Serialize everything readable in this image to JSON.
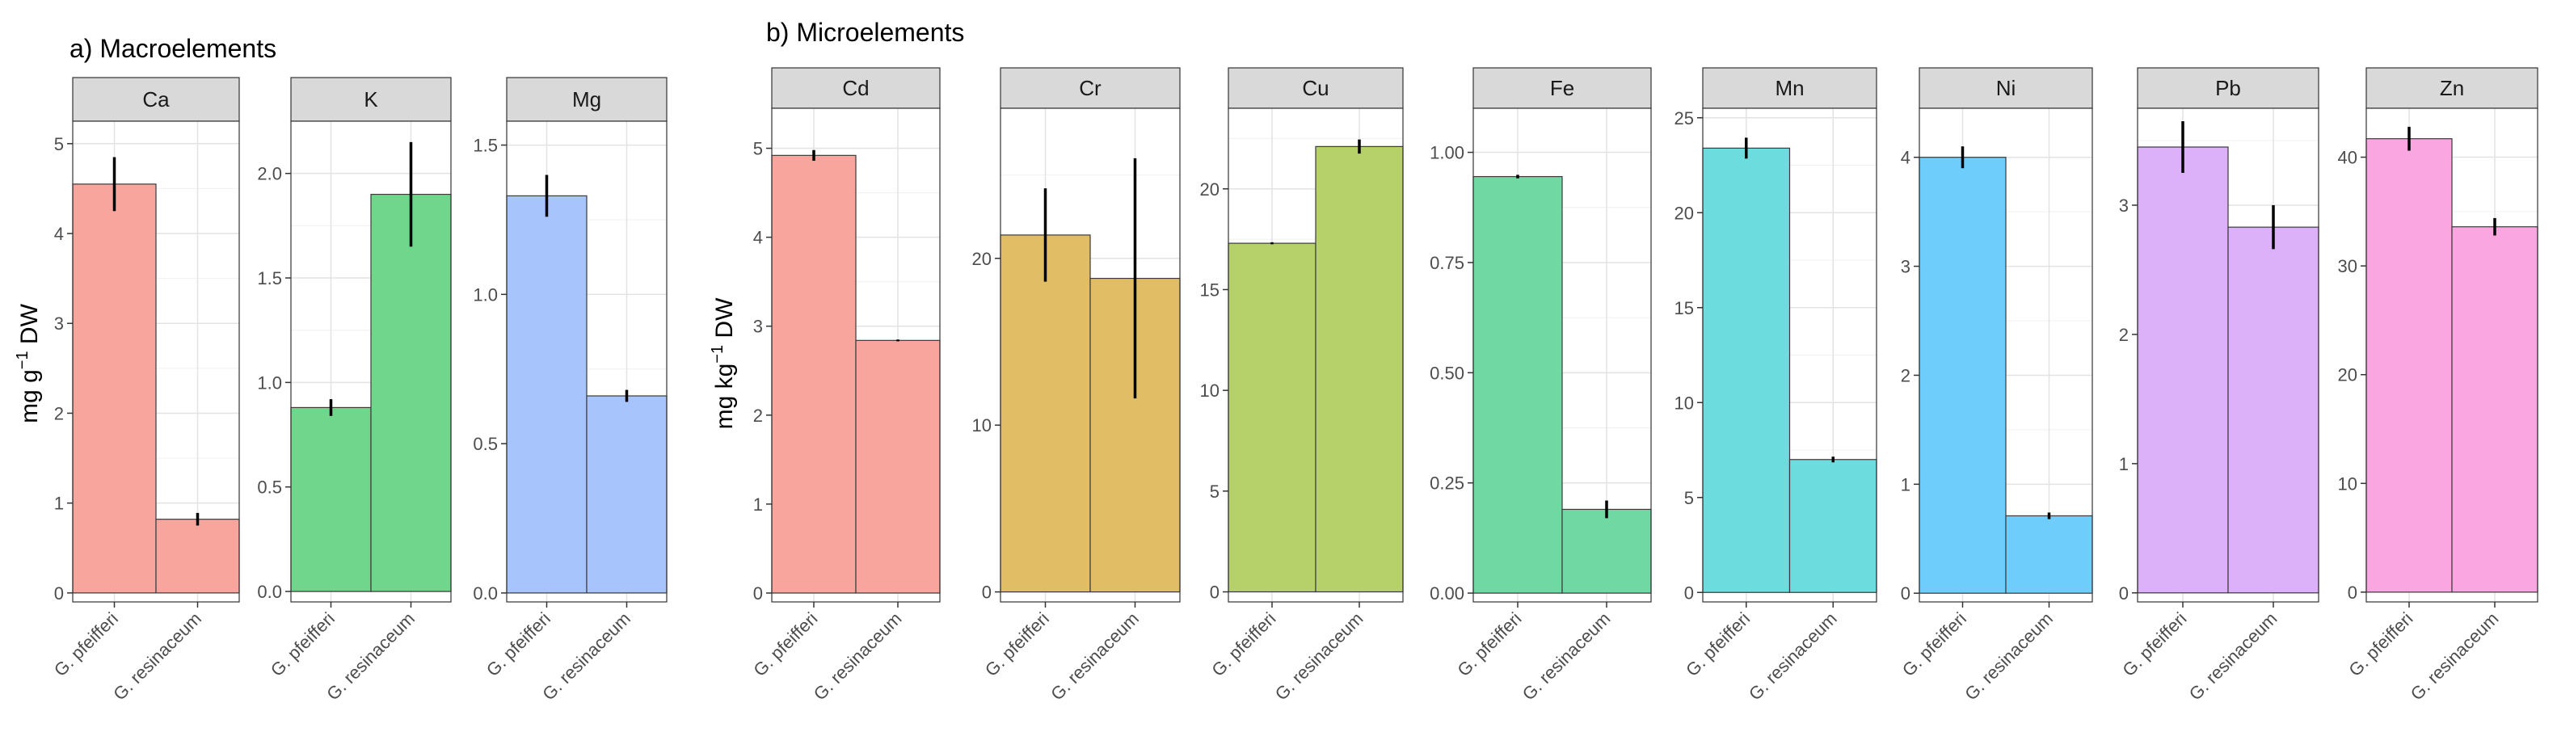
{
  "figure": {
    "x_categories": [
      "G. pfeifferi",
      "G. resinaceum"
    ],
    "groups": [
      {
        "title": "a) Macroelements",
        "ylabel_main": "mg g",
        "ylabel_sup": "−1",
        "ylabel_tail": " DW"
      },
      {
        "title": "b) Microelements",
        "ylabel_main": "mg kg",
        "ylabel_sup": "−1",
        "ylabel_tail": " DW"
      }
    ]
  },
  "chart_data": [
    {
      "type": "bar",
      "group": 0,
      "element": "Ca",
      "color": "#F8A59E",
      "ylim": [
        -0.1,
        5.25
      ],
      "ticks": [
        0,
        1,
        2,
        3,
        4,
        5
      ],
      "tick_labels": [
        "0",
        "1",
        "2",
        "3",
        "4",
        "5"
      ],
      "categories": [
        "G. pfeifferi",
        "G. resinaceum"
      ],
      "values": [
        4.55,
        0.82
      ],
      "errors": [
        0.3,
        0.07
      ]
    },
    {
      "type": "bar",
      "group": 0,
      "element": "K",
      "color": "#6FD68C",
      "ylim": [
        -0.05,
        2.25
      ],
      "ticks": [
        0.0,
        0.5,
        1.0,
        1.5,
        2.0
      ],
      "tick_labels": [
        "0.0",
        "0.5",
        "1.0",
        "1.5",
        "2.0"
      ],
      "categories": [
        "G. pfeifferi",
        "G. resinaceum"
      ],
      "values": [
        0.88,
        1.9
      ],
      "errors": [
        0.04,
        0.25
      ]
    },
    {
      "type": "bar",
      "group": 0,
      "element": "Mg",
      "color": "#A8C4FC",
      "ylim": [
        -0.03,
        1.58
      ],
      "ticks": [
        0.0,
        0.5,
        1.0,
        1.5
      ],
      "tick_labels": [
        "0.0",
        "0.5",
        "1.0",
        "1.5"
      ],
      "categories": [
        "G. pfeifferi",
        "G. resinaceum"
      ],
      "values": [
        1.33,
        0.66
      ],
      "errors": [
        0.07,
        0.02
      ]
    },
    {
      "type": "bar",
      "group": 1,
      "element": "Cd",
      "color": "#F8A59E",
      "ylim": [
        -0.1,
        5.45
      ],
      "ticks": [
        0,
        1,
        2,
        3,
        4,
        5
      ],
      "tick_labels": [
        "0",
        "1",
        "2",
        "3",
        "4",
        "5"
      ],
      "categories": [
        "G. pfeifferi",
        "G. resinaceum"
      ],
      "values": [
        4.92,
        2.84
      ],
      "errors": [
        0.06,
        0.01
      ]
    },
    {
      "type": "bar",
      "group": 1,
      "element": "Cr",
      "color": "#E1BE66",
      "ylim": [
        -0.6,
        29.0
      ],
      "ticks": [
        0,
        10,
        20
      ],
      "tick_labels": [
        "0",
        "10",
        "20"
      ],
      "categories": [
        "G. pfeifferi",
        "G. resinaceum"
      ],
      "values": [
        21.4,
        18.8
      ],
      "errors": [
        2.8,
        7.2
      ]
    },
    {
      "type": "bar",
      "group": 1,
      "element": "Cu",
      "color": "#B6D06A",
      "ylim": [
        -0.5,
        24.0
      ],
      "ticks": [
        0,
        5,
        10,
        15,
        20
      ],
      "tick_labels": [
        "0",
        "5",
        "10",
        "15",
        "20"
      ],
      "categories": [
        "G. pfeifferi",
        "G. resinaceum"
      ],
      "values": [
        17.3,
        22.1
      ],
      "errors": [
        0.05,
        0.35
      ]
    },
    {
      "type": "bar",
      "group": 1,
      "element": "Fe",
      "color": "#6FD8A3",
      "ylim": [
        -0.02,
        1.1
      ],
      "ticks": [
        0.0,
        0.25,
        0.5,
        0.75,
        1.0
      ],
      "tick_labels": [
        "0.00",
        "0.25",
        "0.50",
        "0.75",
        "1.00"
      ],
      "categories": [
        "G. pfeifferi",
        "G. resinaceum"
      ],
      "values": [
        0.945,
        0.19
      ],
      "errors": [
        0.004,
        0.02
      ]
    },
    {
      "type": "bar",
      "group": 1,
      "element": "Mn",
      "color": "#6CDCDF",
      "ylim": [
        -0.5,
        25.5
      ],
      "ticks": [
        0,
        5,
        10,
        15,
        20,
        25
      ],
      "tick_labels": [
        "0",
        "5",
        "10",
        "15",
        "20",
        "25"
      ],
      "categories": [
        "G. pfeifferi",
        "G. resinaceum"
      ],
      "values": [
        23.4,
        7.0
      ],
      "errors": [
        0.55,
        0.15
      ]
    },
    {
      "type": "bar",
      "group": 1,
      "element": "Ni",
      "color": "#6ECDFA",
      "ylim": [
        -0.08,
        4.45
      ],
      "ticks": [
        0,
        1,
        2,
        3,
        4
      ],
      "tick_labels": [
        "0",
        "1",
        "2",
        "3",
        "4"
      ],
      "categories": [
        "G. pfeifferi",
        "G. resinaceum"
      ],
      "values": [
        4.0,
        0.71
      ],
      "errors": [
        0.1,
        0.03
      ]
    },
    {
      "type": "bar",
      "group": 1,
      "element": "Pb",
      "color": "#DDB0FA",
      "ylim": [
        -0.07,
        3.75
      ],
      "ticks": [
        0,
        1,
        2,
        3
      ],
      "tick_labels": [
        "0",
        "1",
        "2",
        "3"
      ],
      "categories": [
        "G. pfeifferi",
        "G. resinaceum"
      ],
      "values": [
        3.45,
        2.83
      ],
      "errors": [
        0.2,
        0.17
      ]
    },
    {
      "type": "bar",
      "group": 1,
      "element": "Zn",
      "color": "#FAA6E0",
      "ylim": [
        -0.9,
        44.5
      ],
      "ticks": [
        0,
        10,
        20,
        30,
        40
      ],
      "tick_labels": [
        "0",
        "10",
        "20",
        "30",
        "40"
      ],
      "categories": [
        "G. pfeifferi",
        "G. resinaceum"
      ],
      "values": [
        41.7,
        33.6
      ],
      "errors": [
        1.1,
        0.8
      ]
    }
  ]
}
